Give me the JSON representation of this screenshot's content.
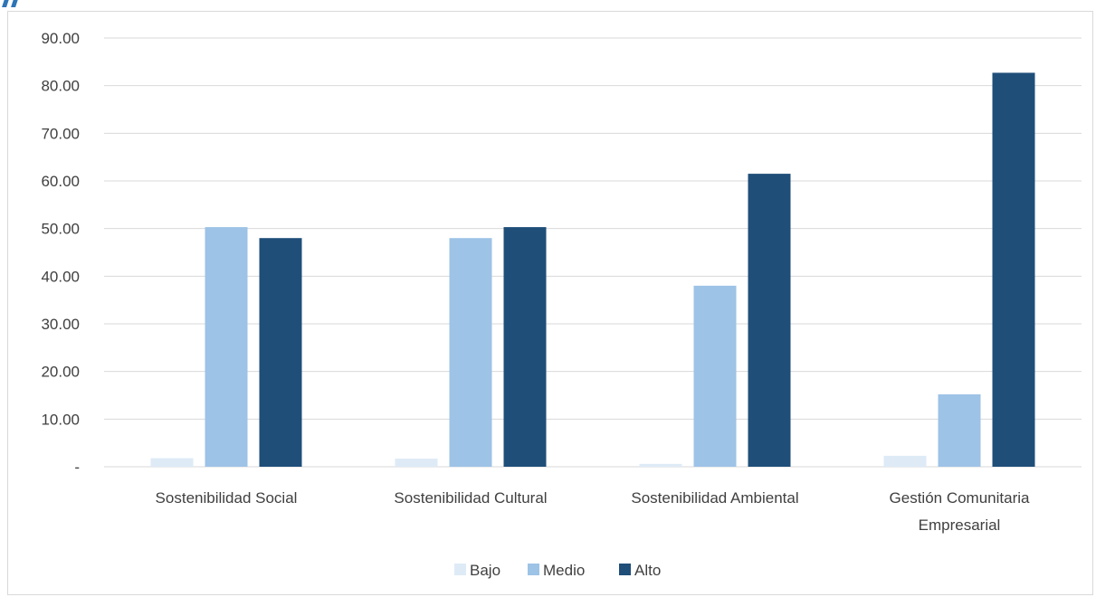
{
  "chart_data": {
    "type": "bar",
    "categories": [
      [
        "Sostenibilidad Social"
      ],
      [
        "Sostenibilidad Cultural"
      ],
      [
        "Sostenibilidad Ambiental"
      ],
      [
        "Gestión Comunitaria",
        "Empresarial"
      ]
    ],
    "series": [
      {
        "name": "Bajo",
        "color": "#deebf7",
        "values": [
          1.8,
          1.7,
          0.6,
          2.3
        ]
      },
      {
        "name": "Medio",
        "color": "#9dc3e6",
        "values": [
          50.3,
          48.0,
          38.0,
          15.2
        ]
      },
      {
        "name": "Alto",
        "color": "#1f4e79",
        "values": [
          48.0,
          50.3,
          61.5,
          82.7
        ]
      }
    ],
    "ylim": [
      0,
      90
    ],
    "yticks": [
      {
        "value": 0,
        "label": "-"
      },
      {
        "value": 10,
        "label": "10.00"
      },
      {
        "value": 20,
        "label": "20.00"
      },
      {
        "value": 30,
        "label": "30.00"
      },
      {
        "value": 40,
        "label": "40.00"
      },
      {
        "value": 50,
        "label": "50.00"
      },
      {
        "value": 60,
        "label": "60.00"
      },
      {
        "value": 70,
        "label": "70.00"
      },
      {
        "value": 80,
        "label": "80.00"
      },
      {
        "value": 90,
        "label": "90.00"
      }
    ],
    "grid": true,
    "gridline_color": "#d9d9d9",
    "legend_position": "bottom",
    "title": "",
    "xlabel": "",
    "ylabel": ""
  }
}
